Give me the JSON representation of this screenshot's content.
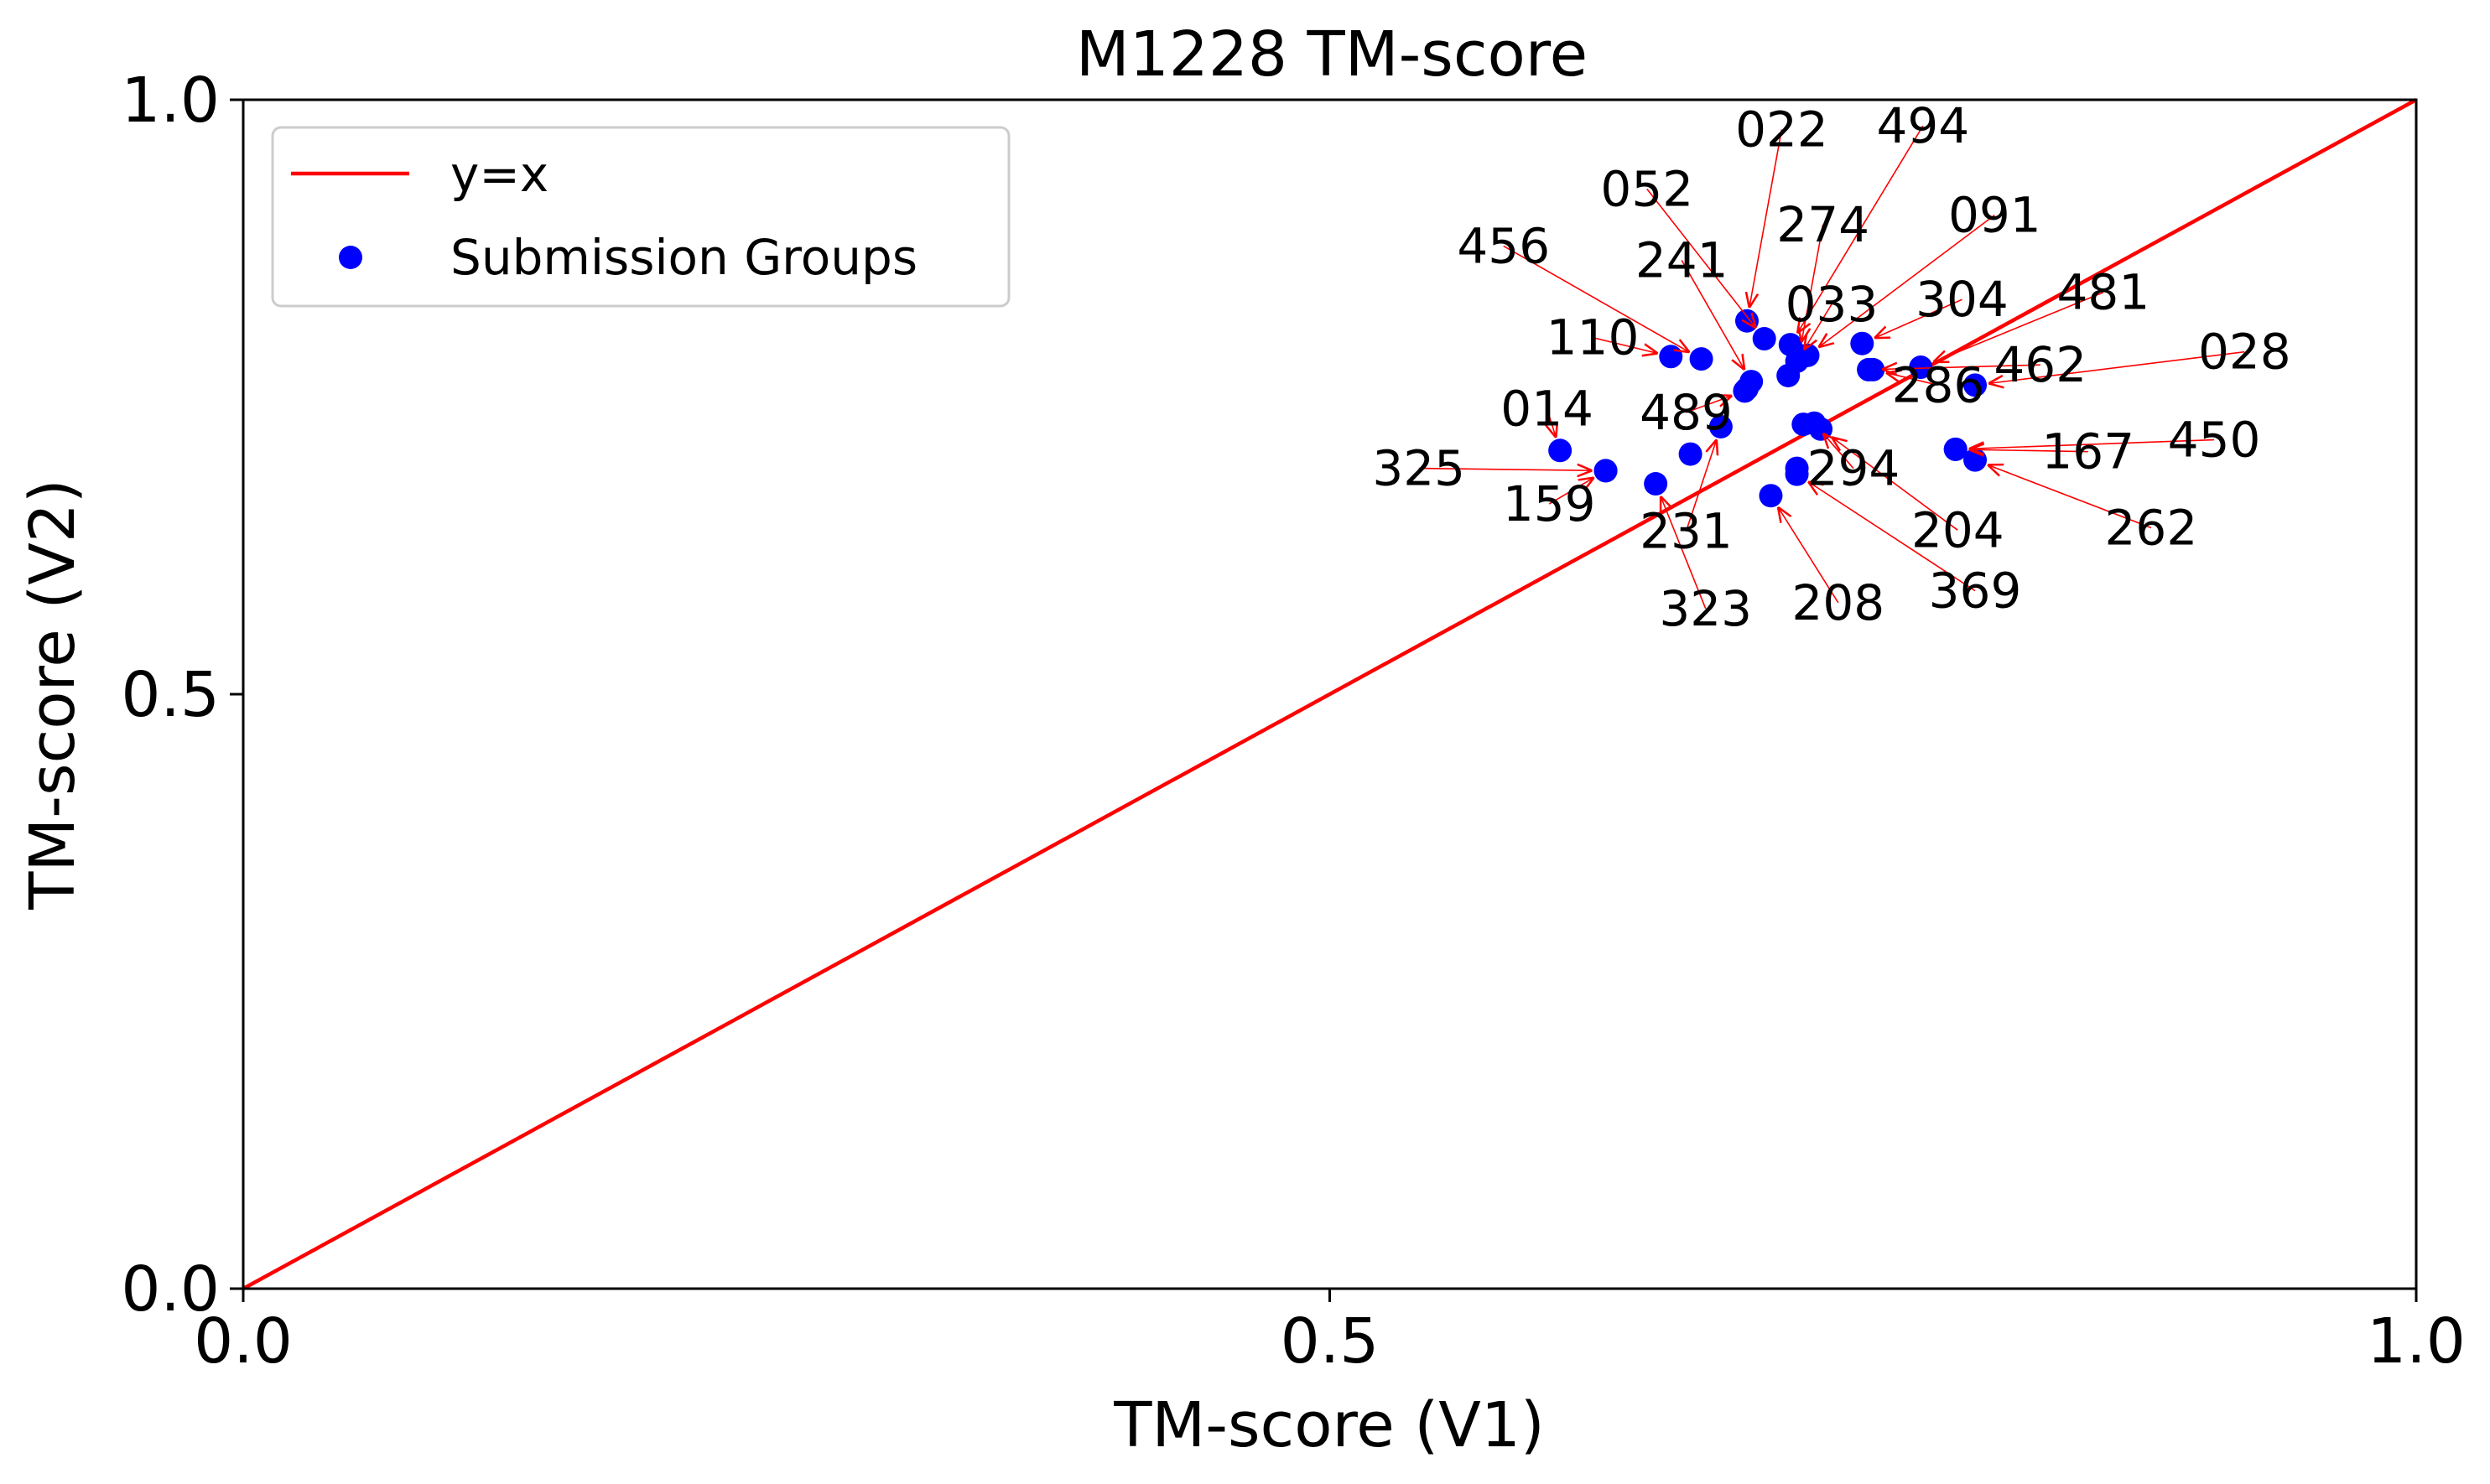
{
  "chart_data": {
    "type": "scatter",
    "title": "M1228 TM-score",
    "xlabel": "TM-score (V1)",
    "ylabel": "TM-score (V2)",
    "xlim": [
      0.0,
      1.0
    ],
    "ylim": [
      0.0,
      1.0
    ],
    "xticks": [
      "0.0",
      "0.5",
      "1.0"
    ],
    "yticks": [
      "0.0",
      "0.5",
      "1.0"
    ],
    "grid": false,
    "legend": {
      "placement": "upper-left",
      "entries": [
        {
          "label": "y=x",
          "marker": "line",
          "color": "#ff0000"
        },
        {
          "label": "Submission Groups",
          "marker": "dot",
          "color": "#0000ff"
        }
      ]
    },
    "reference_line": {
      "label": "y=x",
      "color": "#ff0000"
    },
    "point_color": "#0000ff",
    "arrow_color": "#ff0000",
    "series": [
      {
        "name": "Submission Groups",
        "points": [
          {
            "id": "022",
            "x": 0.692,
            "y": 0.814,
            "lx": 0.708,
            "ly": 0.975
          },
          {
            "id": "494",
            "x": 0.712,
            "y": 0.794,
            "lx": 0.773,
            "ly": 0.978
          },
          {
            "id": "052",
            "x": 0.7,
            "y": 0.799,
            "lx": 0.646,
            "ly": 0.925
          },
          {
            "id": "274",
            "x": 0.716,
            "y": 0.785,
            "lx": 0.727,
            "ly": 0.895
          },
          {
            "id": "091",
            "x": 0.72,
            "y": 0.785,
            "lx": 0.806,
            "ly": 0.903
          },
          {
            "id": "456",
            "x": 0.671,
            "y": 0.782,
            "lx": 0.58,
            "ly": 0.877
          },
          {
            "id": "241",
            "x": 0.694,
            "y": 0.763,
            "lx": 0.662,
            "ly": 0.865
          },
          {
            "id": "033",
            "x": 0.715,
            "y": 0.78,
            "lx": 0.731,
            "ly": 0.828
          },
          {
            "id": "304",
            "x": 0.745,
            "y": 0.795,
            "lx": 0.791,
            "ly": 0.832
          },
          {
            "id": "481",
            "x": 0.772,
            "y": 0.775,
            "lx": 0.856,
            "ly": 0.838
          },
          {
            "id": "110",
            "x": 0.657,
            "y": 0.784,
            "lx": 0.621,
            "ly": 0.8
          },
          {
            "id": "286",
            "x": 0.75,
            "y": 0.773,
            "lx": 0.78,
            "ly": 0.76
          },
          {
            "id": "462",
            "x": 0.748,
            "y": 0.773,
            "lx": 0.827,
            "ly": 0.777
          },
          {
            "id": "028",
            "x": 0.797,
            "y": 0.76,
            "lx": 0.921,
            "ly": 0.788
          },
          {
            "id": "014",
            "x": 0.606,
            "y": 0.705,
            "lx": 0.6,
            "ly": 0.74
          },
          {
            "id": "489",
            "x": 0.691,
            "y": 0.755,
            "lx": 0.664,
            "ly": 0.737
          },
          {
            "id": "325",
            "x": 0.627,
            "y": 0.688,
            "lx": 0.541,
            "ly": 0.69
          },
          {
            "id": "159",
            "x": 0.627,
            "y": 0.688,
            "lx": 0.601,
            "ly": 0.66
          },
          {
            "id": "231",
            "x": 0.68,
            "y": 0.725,
            "lx": 0.664,
            "ly": 0.637
          },
          {
            "id": "323",
            "x": 0.65,
            "y": 0.677,
            "lx": 0.673,
            "ly": 0.572
          },
          {
            "id": "294",
            "x": 0.723,
            "y": 0.728,
            "lx": 0.741,
            "ly": 0.69
          },
          {
            "id": "204",
            "x": 0.726,
            "y": 0.723,
            "lx": 0.789,
            "ly": 0.638
          },
          {
            "id": "208",
            "x": 0.703,
            "y": 0.667,
            "lx": 0.734,
            "ly": 0.577
          },
          {
            "id": "369",
            "x": 0.715,
            "y": 0.685,
            "lx": 0.797,
            "ly": 0.587
          },
          {
            "id": "167",
            "x": 0.788,
            "y": 0.706,
            "lx": 0.849,
            "ly": 0.704
          },
          {
            "id": "450",
            "x": 0.788,
            "y": 0.706,
            "lx": 0.907,
            "ly": 0.714
          },
          {
            "id": "262",
            "x": 0.797,
            "y": 0.697,
            "lx": 0.878,
            "ly": 0.64
          },
          {
            "id": "extra-1",
            "x": 0.711,
            "y": 0.768,
            "lx": null,
            "ly": null
          },
          {
            "id": "extra-2",
            "x": 0.666,
            "y": 0.702,
            "lx": null,
            "ly": null
          },
          {
            "id": "extra-3",
            "x": 0.715,
            "y": 0.69,
            "lx": null,
            "ly": null
          },
          {
            "id": "extra-4",
            "x": 0.718,
            "y": 0.727,
            "lx": null,
            "ly": null
          },
          {
            "id": "extra-5",
            "x": 0.692,
            "y": 0.757,
            "lx": null,
            "ly": null
          }
        ]
      }
    ]
  }
}
